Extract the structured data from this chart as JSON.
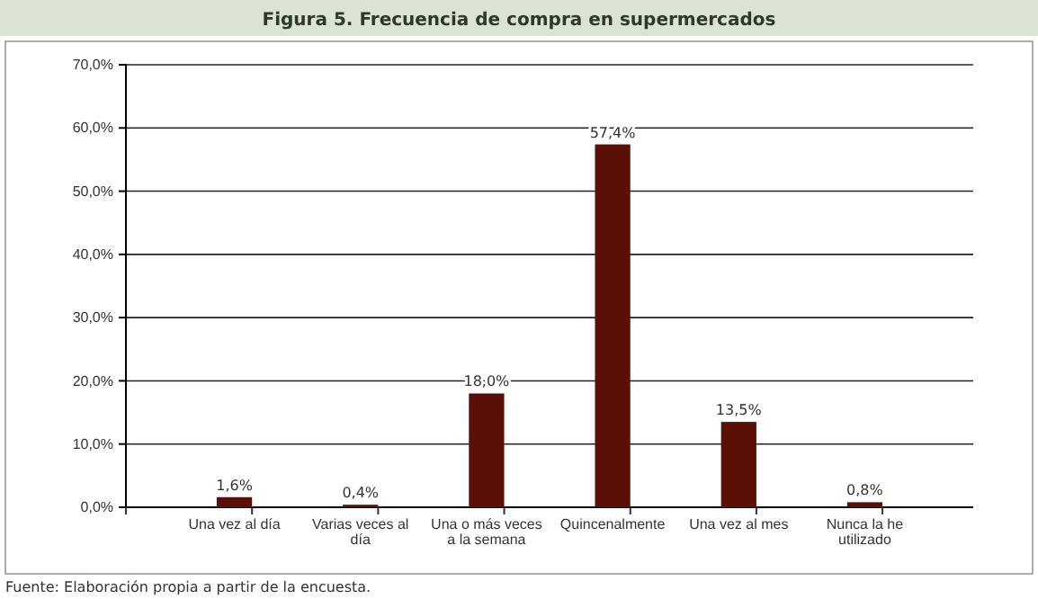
{
  "chart_data": {
    "type": "bar",
    "title": "Figura 5. Frecuencia de compra en supermercados",
    "categories": [
      "Una vez al día",
      "Varias veces al día",
      "Una o más veces a la semana",
      "Quincenalmente",
      "Una vez al mes",
      "Nunca la he utilizado"
    ],
    "values": [
      1.6,
      0.4,
      18.0,
      57.4,
      13.5,
      0.8
    ],
    "value_labels": [
      "1,6%",
      "0,4%",
      "18,0%",
      "57,4%",
      "13,5%",
      "0,8%"
    ],
    "color": "#5a1006",
    "ylim": [
      0,
      70
    ],
    "yticks": [
      {
        "value": 0,
        "label": "0,0%"
      },
      {
        "value": 10,
        "label": "10,0%"
      },
      {
        "value": 20,
        "label": "20,0%"
      },
      {
        "value": 30,
        "label": "30,0%"
      },
      {
        "value": 40,
        "label": "40,0%"
      },
      {
        "value": 50,
        "label": "50,0%"
      },
      {
        "value": 60,
        "label": "60,0%"
      },
      {
        "value": 70,
        "label": "70,0%"
      }
    ],
    "grid": "y",
    "annotations": [
      "Fuente: Elaboración propia a partir de la encuesta."
    ]
  }
}
